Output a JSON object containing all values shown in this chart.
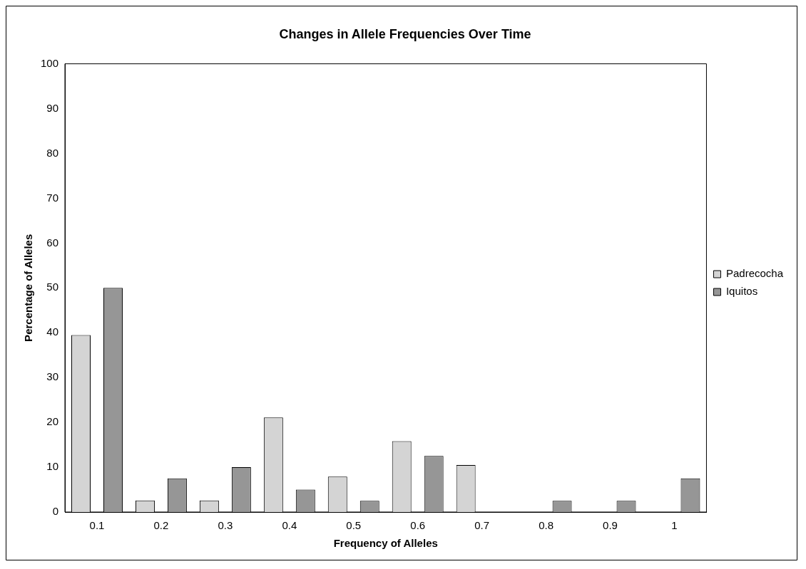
{
  "chart_data": {
    "type": "bar",
    "title": "Changes in Allele Frequencies Over Time",
    "xlabel": "Frequency of Alleles",
    "ylabel": "Percentage of Alleles",
    "categories": [
      "0.1",
      "0.2",
      "0.3",
      "0.4",
      "0.5",
      "0.6",
      "0.7",
      "0.8",
      "0.9",
      "1"
    ],
    "series": [
      {
        "name": "Padrecocha",
        "color": "#d4d4d4",
        "values": [
          39.5,
          2.6,
          2.6,
          21.1,
          7.9,
          15.8,
          10.5,
          0,
          0,
          0
        ]
      },
      {
        "name": "Iquitos",
        "color": "#969696",
        "values": [
          50,
          7.5,
          10,
          5,
          2.5,
          12.5,
          0,
          2.5,
          2.5,
          7.5
        ]
      }
    ],
    "ylim": [
      0,
      100
    ],
    "yticks": [
      0,
      10,
      20,
      30,
      40,
      50,
      60,
      70,
      80,
      90,
      100
    ],
    "grid": false,
    "legend": "right"
  }
}
